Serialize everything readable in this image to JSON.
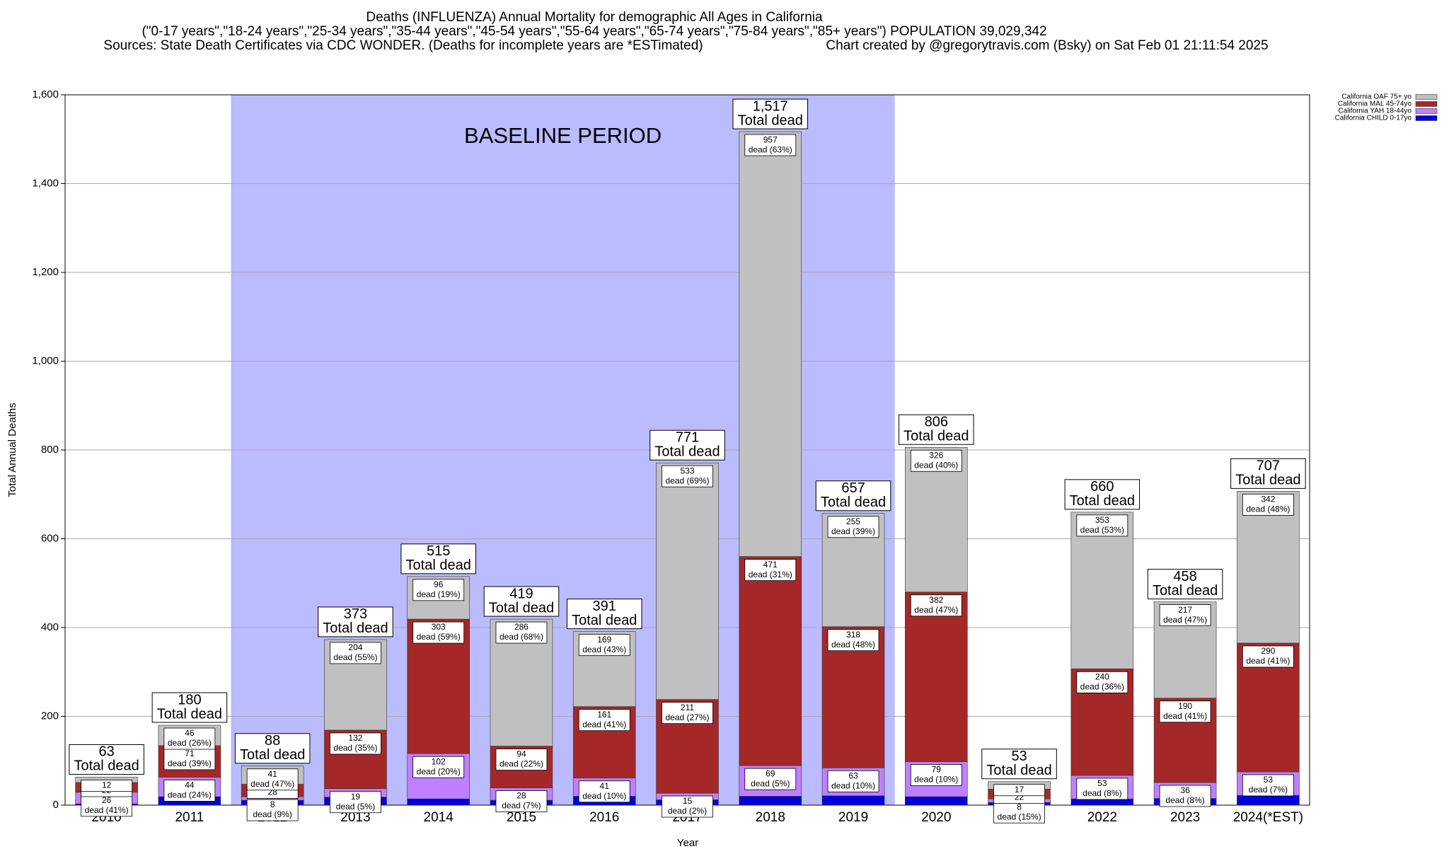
{
  "chart_data": {
    "type": "stacked_bar",
    "title": "Deaths (INFLUENZA) Annual Mortality for demographic All Ages in California",
    "subtitle": "(\"0-17 years\",\"18-24 years\",\"25-34 years\",\"35-44 years\",\"45-54 years\",\"55-64 years\",\"65-74 years\",\"75-84 years\",\"85+ years\") POPULATION 39,029,342",
    "sources": "Sources: State Death Certificates via CDC WONDER. (Deaths for incomplete years are *ESTimated)",
    "credit": "Chart created by @gregorytravis.com (Bsky) on Sat Feb 01 21:11:54 2025",
    "y_label": "Total Annual Deaths",
    "x_label": "Year",
    "categories": [
      "2010",
      "2011",
      "2012",
      "2013",
      "2014",
      "2015",
      "2016",
      "2017",
      "2018",
      "2019",
      "2020",
      "2021",
      "2022",
      "2023",
      "2024(*EST)"
    ],
    "series": [
      {
        "name": "California OAF 75+ yo",
        "color": "#c0c0c0",
        "values": [
          12,
          46,
          41,
          204,
          96,
          286,
          169,
          533,
          957,
          255,
          326,
          17,
          353,
          217,
          342
        ],
        "pct_labels": [
          null,
          "dead (26%)",
          "dead (47%)",
          "dead (55%)",
          "dead (19%)",
          "dead (68%)",
          "dead (43%)",
          "dead (69%)",
          "dead (63%)",
          "dead (39%)",
          "dead (40%)",
          null,
          "dead (53%)",
          "dead (47%)",
          "dead (48%)"
        ]
      },
      {
        "name": "California MAL 45-74yo",
        "color": "#a52828",
        "values": [
          22,
          71,
          28,
          132,
          303,
          94,
          161,
          211,
          471,
          318,
          382,
          22,
          240,
          190,
          290
        ],
        "pct_labels": [
          null,
          "dead (39%)",
          null,
          "dead (35%)",
          "dead (59%)",
          "dead (22%)",
          "dead (41%)",
          "dead (27%)",
          "dead (31%)",
          "dead (48%)",
          "dead (47%)",
          null,
          "dead (36%)",
          "dead (41%)",
          "dead (41%)"
        ]
      },
      {
        "name": "California YAH 18-44yo",
        "color": "#bf80ff",
        "values": [
          26,
          44,
          8,
          19,
          102,
          28,
          41,
          15,
          69,
          63,
          79,
          8,
          53,
          36,
          53
        ],
        "pct_labels": [
          "dead (41%)",
          "dead (24%)",
          "dead (9%)",
          "dead (5%)",
          "dead (20%)",
          "dead (7%)",
          "dead (10%)",
          "dead (2%)",
          "dead (5%)",
          "dead (10%)",
          "dead (10%)",
          "dead (15%)",
          "dead (8%)",
          "dead (8%)",
          "dead (7%)"
        ]
      },
      {
        "name": "California CHILD 0-17yo",
        "color": "#0000dd",
        "values": [
          3,
          19,
          11,
          18,
          14,
          11,
          20,
          12,
          20,
          21,
          19,
          6,
          14,
          15,
          22
        ]
      }
    ],
    "totals": [
      63,
      180,
      88,
      373,
      515,
      419,
      391,
      771,
      1517,
      657,
      806,
      53,
      660,
      458,
      707
    ],
    "total_labels": [
      "63",
      "180",
      "88",
      "373",
      "515",
      "419",
      "391",
      "771",
      "1,517",
      "657",
      "806",
      "53",
      "660",
      "458",
      "707"
    ],
    "total_text": "Total dead",
    "shaded_region": {
      "label": "BASELINE PERIOD",
      "from": "2012",
      "to": "2019",
      "color": "#bbbbff"
    },
    "ylim": [
      0,
      1600
    ],
    "yticks": [
      0,
      200,
      400,
      600,
      800,
      {
        "value": 1000,
        "label": "1,000"
      },
      {
        "value": 1200,
        "label": "1,200"
      },
      {
        "value": 1400,
        "label": "1,400"
      },
      {
        "value": 1600,
        "label": "1,600"
      }
    ],
    "grid": true,
    "legend": "top-right"
  }
}
